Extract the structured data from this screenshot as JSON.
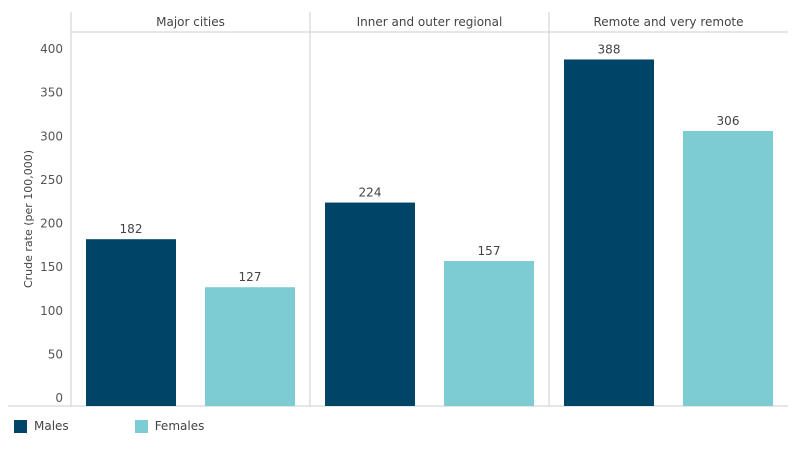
{
  "chart_data": {
    "type": "bar",
    "ylabel": "Crude rate (per 100,000)",
    "ylim": [
      0,
      430
    ],
    "yticks": [
      0,
      50,
      100,
      150,
      200,
      250,
      300,
      350,
      400
    ],
    "panels": [
      {
        "title": "Major cities",
        "values": [
          182,
          127
        ]
      },
      {
        "title": "Inner and outer regional",
        "values": [
          224,
          157
        ]
      },
      {
        "title": "Remote and very remote",
        "values": [
          388,
          306
        ]
      }
    ],
    "series": [
      {
        "name": "Males",
        "color": "#004567"
      },
      {
        "name": "Females",
        "color": "#7dccd3"
      }
    ],
    "grid": false,
    "legend": "bottom-left"
  }
}
